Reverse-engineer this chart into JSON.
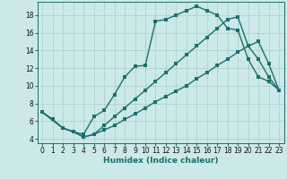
{
  "xlabel": "Humidex (Indice chaleur)",
  "xlim": [
    -0.5,
    23.5
  ],
  "ylim": [
    3.5,
    19.5
  ],
  "xticks": [
    0,
    1,
    2,
    3,
    4,
    5,
    6,
    7,
    8,
    9,
    10,
    11,
    12,
    13,
    14,
    15,
    16,
    17,
    18,
    19,
    20,
    21,
    22,
    23
  ],
  "yticks": [
    4,
    6,
    8,
    10,
    12,
    14,
    16,
    18
  ],
  "bg_color": "#cce8e8",
  "grid_color": "#aacccc",
  "line_color": "#1a7070",
  "curve1_x": [
    0,
    1,
    2,
    3,
    4,
    5,
    6,
    7,
    8,
    9,
    10,
    11,
    12,
    13,
    14,
    15,
    16,
    17,
    18,
    19,
    20,
    21,
    22,
    23
  ],
  "curve1_y": [
    7.0,
    6.2,
    5.2,
    4.8,
    4.5,
    6.5,
    7.2,
    9.0,
    11.0,
    12.2,
    12.3,
    17.3,
    17.5,
    18.0,
    18.5,
    19.0,
    18.5,
    18.0,
    16.5,
    16.3,
    13.0,
    11.0,
    10.5,
    9.5
  ],
  "curve2_x": [
    0,
    2,
    3,
    4,
    5,
    6,
    7,
    8,
    9,
    10,
    11,
    12,
    13,
    14,
    15,
    16,
    17,
    18,
    19,
    20,
    21,
    22,
    23
  ],
  "curve2_y": [
    7.0,
    5.2,
    4.8,
    4.2,
    4.5,
    5.5,
    6.5,
    7.5,
    8.5,
    9.5,
    10.5,
    11.5,
    12.5,
    13.5,
    14.5,
    15.5,
    16.5,
    17.5,
    17.8,
    14.5,
    13.0,
    11.0,
    9.5
  ],
  "curve3_x": [
    0,
    2,
    3,
    4,
    5,
    6,
    7,
    8,
    9,
    10,
    11,
    12,
    13,
    14,
    15,
    16,
    17,
    18,
    19,
    20,
    21,
    22,
    23
  ],
  "curve3_y": [
    7.0,
    5.2,
    4.8,
    4.2,
    4.5,
    5.0,
    5.5,
    6.2,
    6.8,
    7.5,
    8.2,
    8.8,
    9.4,
    10.0,
    10.8,
    11.5,
    12.3,
    13.0,
    13.8,
    14.5,
    15.0,
    12.5,
    9.5
  ],
  "marker": "D",
  "marker_size": 2.5,
  "line_width": 1.0,
  "tick_fontsize": 5.5,
  "label_fontsize": 6.5
}
